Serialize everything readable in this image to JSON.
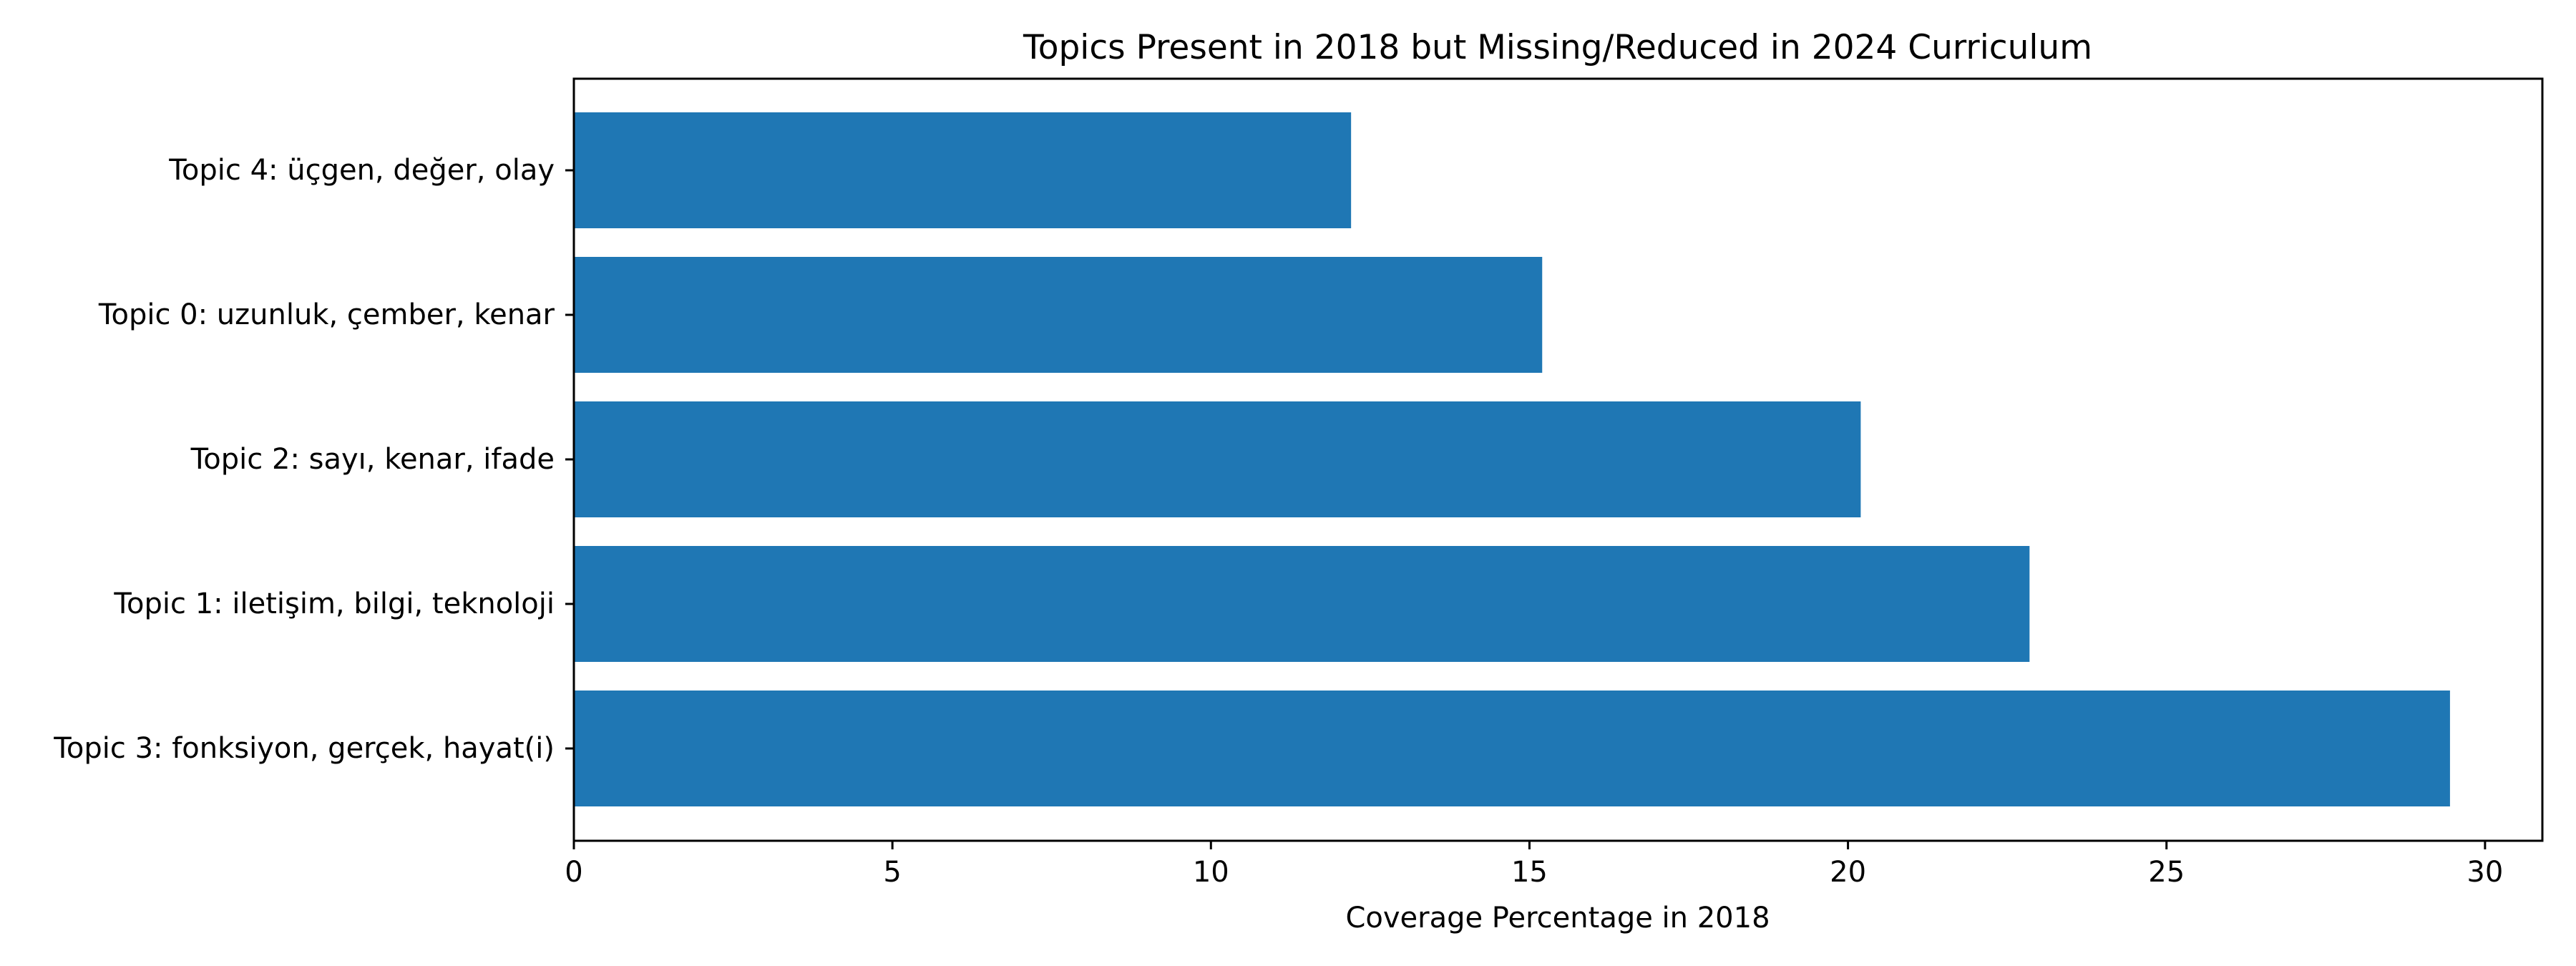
{
  "chart_data": {
    "type": "bar",
    "orientation": "horizontal",
    "title": "Topics Present in 2018 but Missing/Reduced in 2024 Curriculum",
    "xlabel": "Coverage Percentage in 2018",
    "ylabel": "",
    "categories": [
      "Topic 4: üçgen, değer, olay",
      "Topic 0: uzunluk, çember, kenar",
      "Topic 2: sayı, kenar, ifade",
      "Topic 1: iletişim, bilgi, teknoloji",
      "Topic 3: fonksiyon, gerçek, hayat(i)"
    ],
    "values": [
      12.2,
      15.2,
      20.2,
      22.85,
      29.45
    ],
    "xlim": [
      0,
      30.9
    ],
    "xticks": [
      "0",
      "5",
      "10",
      "15",
      "20",
      "25",
      "30"
    ],
    "grid": false,
    "legend": "none",
    "bar_color": "#1f77b4"
  }
}
